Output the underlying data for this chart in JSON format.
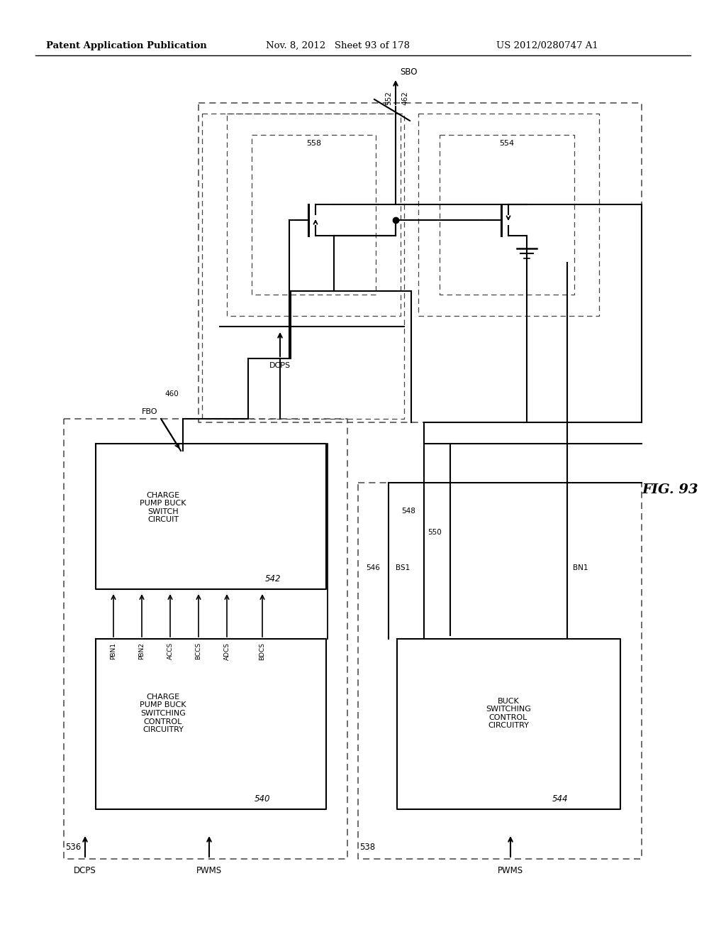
{
  "header_left": "Patent Application Publication",
  "header_mid": "Nov. 8, 2012   Sheet 93 of 178",
  "header_right": "US 2012/0280747 A1",
  "fig_label": "FIG. 93",
  "background": "#ffffff",
  "line_color": "#000000",
  "dashed_color": "#444444"
}
